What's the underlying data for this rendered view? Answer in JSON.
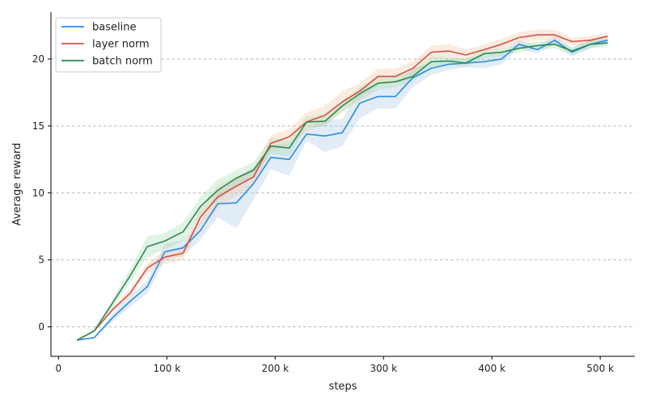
{
  "chart_data": {
    "type": "line",
    "title": "",
    "xlabel": "steps",
    "ylabel": "Average reward",
    "xlim": [
      -7000,
      532000
    ],
    "ylim": [
      -2.2,
      23.5
    ],
    "x_ticks": [
      {
        "value": 0,
        "label": "0"
      },
      {
        "value": 100000,
        "label": "100 k"
      },
      {
        "value": 200000,
        "label": "200 k"
      },
      {
        "value": 300000,
        "label": "300 k"
      },
      {
        "value": 400000,
        "label": "400 k"
      },
      {
        "value": 500000,
        "label": "500 k"
      }
    ],
    "y_ticks": [
      {
        "value": 0,
        "label": "0"
      },
      {
        "value": 5,
        "label": "5"
      },
      {
        "value": 10,
        "label": "10"
      },
      {
        "value": 15,
        "label": "15"
      },
      {
        "value": 20,
        "label": "20"
      }
    ],
    "grid": "horizontal-dashed",
    "legend": "top-left",
    "x": [
      17000,
      33000,
      50000,
      66000,
      82000,
      98000,
      115000,
      131000,
      147000,
      164000,
      180000,
      196000,
      213000,
      229000,
      246000,
      262000,
      278000,
      295000,
      311000,
      327000,
      344000,
      360000,
      376000,
      393000,
      409000,
      425000,
      442000,
      458000,
      474000,
      491000,
      507000
    ],
    "series": [
      {
        "name": "baseline",
        "color": "#2b8de3",
        "band_color": "#9cc1e6",
        "values": [
          -1.0,
          -0.8,
          0.7,
          1.9,
          3.0,
          5.6,
          5.9,
          7.2,
          9.2,
          9.25,
          10.7,
          12.65,
          12.5,
          14.4,
          14.25,
          14.5,
          16.7,
          17.2,
          17.2,
          18.6,
          19.3,
          19.6,
          19.7,
          19.8,
          20.0,
          21.1,
          20.7,
          21.4,
          20.5,
          21.1,
          21.4
        ],
        "band": [
          0,
          0,
          0.3,
          0.4,
          0.5,
          0.6,
          0.6,
          0.7,
          1.0,
          1.9,
          1.2,
          0.9,
          1.2,
          0.5,
          1.2,
          1.0,
          1.1,
          0.9,
          0.9,
          0.7,
          0.5,
          0.4,
          0.3,
          0.5,
          0.4,
          0.3,
          0.3,
          0.3,
          0.3,
          0.3,
          0.3
        ]
      },
      {
        "name": "layer norm",
        "color": "#d64f4b",
        "band_color": "#f3bf98",
        "values": [
          -1.0,
          -0.3,
          1.3,
          2.5,
          4.4,
          5.2,
          5.5,
          8.2,
          9.7,
          10.5,
          11.2,
          13.7,
          14.2,
          15.3,
          15.8,
          16.8,
          17.6,
          18.7,
          18.7,
          19.3,
          20.5,
          20.6,
          20.3,
          20.7,
          21.1,
          21.6,
          21.8,
          21.8,
          21.3,
          21.4,
          21.7
        ],
        "band": [
          0,
          0,
          0.2,
          0.3,
          0.4,
          0.5,
          0.5,
          0.6,
          0.9,
          0.7,
          0.6,
          0.6,
          0.6,
          0.7,
          0.7,
          0.8,
          0.6,
          0.6,
          0.6,
          0.5,
          0.5,
          0.5,
          0.4,
          0.4,
          0.4,
          0.4,
          0.4,
          0.4,
          0.3,
          0.3,
          0.3
        ]
      },
      {
        "name": "batch norm",
        "color": "#2a8a4f",
        "band_color": "#9ad7a9",
        "values": [
          -1.0,
          -0.3,
          1.8,
          3.8,
          6.0,
          6.4,
          7.1,
          9.0,
          10.2,
          11.1,
          11.7,
          13.5,
          13.35,
          15.3,
          15.35,
          16.5,
          17.4,
          18.2,
          18.3,
          18.7,
          19.8,
          19.85,
          19.7,
          20.4,
          20.5,
          20.8,
          21.0,
          21.1,
          20.6,
          21.1,
          21.2
        ],
        "band": [
          0,
          0,
          0.3,
          0.5,
          0.8,
          0.6,
          0.7,
          0.7,
          0.8,
          0.6,
          0.6,
          0.6,
          0.6,
          0.4,
          0.4,
          0.4,
          0.5,
          0.5,
          0.4,
          0.4,
          0.4,
          0.3,
          0.3,
          0.3,
          0.3,
          0.3,
          0.3,
          0.3,
          0.3,
          0.3,
          0.3
        ]
      }
    ]
  }
}
